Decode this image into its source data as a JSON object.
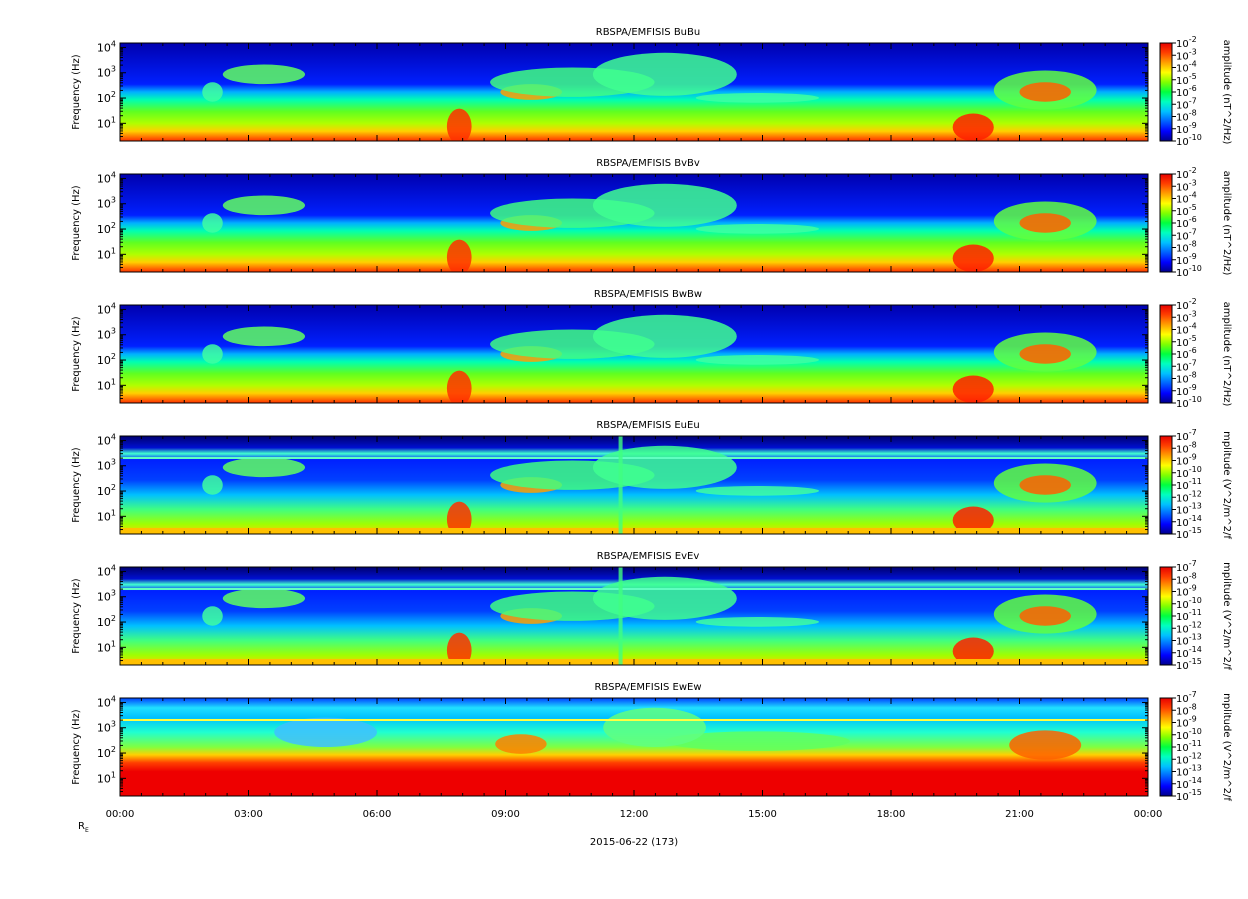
{
  "figure": {
    "date_label": "2015-06-22 (173)",
    "ephemeris_label": "R",
    "ephemeris_subscript": "E"
  },
  "chart_data": [
    {
      "type": "heatmap",
      "title": "RBSPA/EMFISIS  BuBu",
      "ylabel": "Frequency (Hz)",
      "zlabel": "amplitude (nT^2/Hz)",
      "y_scale": "log",
      "ylim": [
        2,
        15000
      ],
      "y_ticks": [
        "10^1",
        "10^2",
        "10^3",
        "10^4"
      ],
      "z_scale": "log",
      "zlim": [
        1e-10,
        0.01
      ],
      "z_ticks": [
        "10^-2",
        "10^-3",
        "10^-4",
        "10^-5",
        "10^-6",
        "10^-7",
        "10^-8",
        "10^-9",
        "10^-10"
      ],
      "colormap": "rainbow (blue-cyan-green-yellow-red)"
    },
    {
      "type": "heatmap",
      "title": "RBSPA/EMFISIS  BvBv",
      "ylabel": "Frequency (Hz)",
      "zlabel": "amplitude (nT^2/Hz)",
      "y_scale": "log",
      "ylim": [
        2,
        15000
      ],
      "y_ticks": [
        "10^1",
        "10^2",
        "10^3",
        "10^4"
      ],
      "z_scale": "log",
      "zlim": [
        1e-10,
        0.01
      ],
      "z_ticks": [
        "10^-2",
        "10^-3",
        "10^-4",
        "10^-5",
        "10^-6",
        "10^-7",
        "10^-8",
        "10^-9",
        "10^-10"
      ],
      "colormap": "rainbow (blue-cyan-green-yellow-red)"
    },
    {
      "type": "heatmap",
      "title": "RBSPA/EMFISIS  BwBw",
      "ylabel": "Frequency (Hz)",
      "zlabel": "amplitude (nT^2/Hz)",
      "y_scale": "log",
      "ylim": [
        2,
        15000
      ],
      "y_ticks": [
        "10^1",
        "10^2",
        "10^3",
        "10^4"
      ],
      "z_scale": "log",
      "zlim": [
        1e-10,
        0.01
      ],
      "z_ticks": [
        "10^-2",
        "10^-3",
        "10^-4",
        "10^-5",
        "10^-6",
        "10^-7",
        "10^-8",
        "10^-9",
        "10^-10"
      ],
      "colormap": "rainbow (blue-cyan-green-yellow-red)"
    },
    {
      "type": "heatmap",
      "title": "RBSPA/EMFISIS  EuEu",
      "ylabel": "Frequency (Hz)",
      "zlabel": "mplitude (V^2/m^2/f",
      "y_scale": "log",
      "ylim": [
        2,
        15000
      ],
      "y_ticks": [
        "10^1",
        "10^2",
        "10^3",
        "10^4"
      ],
      "z_scale": "log",
      "zlim": [
        1e-15,
        1e-07
      ],
      "z_ticks": [
        "10^-7",
        "10^-8",
        "10^-9",
        "10^-10",
        "10^-11",
        "10^-12",
        "10^-13",
        "10^-14",
        "10^-15"
      ],
      "colormap": "rainbow (blue-cyan-green-yellow-red)"
    },
    {
      "type": "heatmap",
      "title": "RBSPA/EMFISIS  EvEv",
      "ylabel": "Frequency (Hz)",
      "zlabel": "mplitude (V^2/m^2/f",
      "y_scale": "log",
      "ylim": [
        2,
        15000
      ],
      "y_ticks": [
        "10^1",
        "10^2",
        "10^3",
        "10^4"
      ],
      "z_scale": "log",
      "zlim": [
        1e-15,
        1e-07
      ],
      "z_ticks": [
        "10^-7",
        "10^-8",
        "10^-9",
        "10^-10",
        "10^-11",
        "10^-12",
        "10^-13",
        "10^-14",
        "10^-15"
      ],
      "colormap": "rainbow (blue-cyan-green-yellow-red)"
    },
    {
      "type": "heatmap",
      "title": "RBSPA/EMFISIS  EwEw",
      "ylabel": "Frequency (Hz)",
      "zlabel": "mplitude (V^2/m^2/f",
      "y_scale": "log",
      "ylim": [
        2,
        15000
      ],
      "y_ticks": [
        "10^1",
        "10^2",
        "10^3",
        "10^4"
      ],
      "z_scale": "log",
      "zlim": [
        1e-15,
        1e-07
      ],
      "z_ticks": [
        "10^-7",
        "10^-8",
        "10^-9",
        "10^-10",
        "10^-11",
        "10^-12",
        "10^-13",
        "10^-14",
        "10^-15"
      ],
      "colormap": "rainbow (blue-cyan-green-yellow-red)"
    }
  ],
  "x_axis": {
    "ticks": [
      "00:00",
      "03:00",
      "06:00",
      "09:00",
      "12:00",
      "15:00",
      "18:00",
      "21:00",
      "00:00"
    ],
    "minor_per_major": 6
  },
  "colors": {
    "axis": "#000000",
    "background": "#ffffff",
    "colormap": [
      "#00008b",
      "#0000ff",
      "#0060ff",
      "#00c0ff",
      "#00ffc0",
      "#00ff40",
      "#80ff00",
      "#ffff00",
      "#ffa000",
      "#ff4000",
      "#e80000"
    ]
  }
}
